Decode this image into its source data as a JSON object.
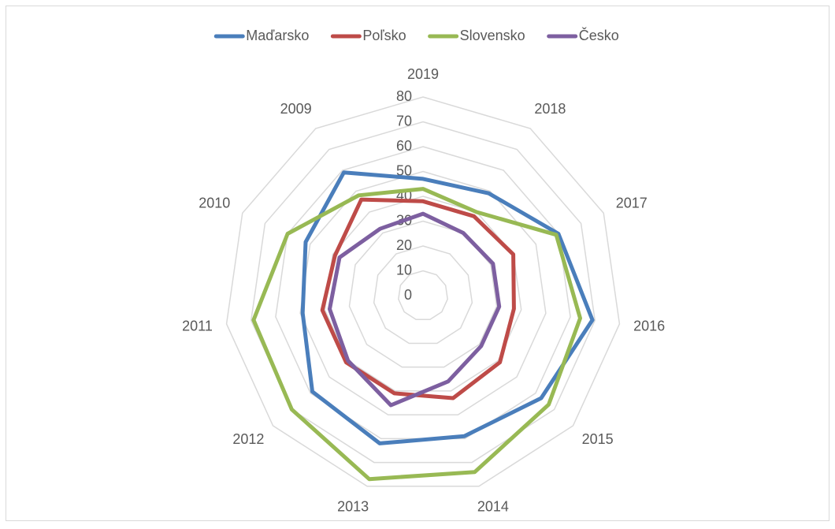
{
  "chart_data": {
    "type": "radar",
    "categories": [
      "2019",
      "2018",
      "2017",
      "2016",
      "2015",
      "2014",
      "2013",
      "2012",
      "2011",
      "2010",
      "2009"
    ],
    "series": [
      {
        "name": "Maďarsko",
        "color": "#4a7ebb",
        "values": [
          47,
          49,
          60,
          69,
          63,
          59,
          62,
          59,
          49,
          52,
          59
        ]
      },
      {
        "name": "Poľsko",
        "color": "#be4b48",
        "values": [
          38,
          38,
          40,
          37,
          41,
          43,
          41,
          41,
          41,
          39,
          46
        ]
      },
      {
        "name": "Slovensko",
        "color": "#98b954",
        "values": [
          43,
          40,
          59,
          64,
          67,
          74,
          77,
          70,
          69,
          60,
          48
        ]
      },
      {
        "name": "Česko",
        "color": "#7d5fa0",
        "values": [
          33,
          30,
          31,
          31,
          31,
          36,
          46,
          40,
          38,
          37,
          32
        ]
      }
    ],
    "ylim": [
      0,
      80
    ],
    "yticks": [
      0,
      10,
      20,
      30,
      40,
      50,
      60,
      70,
      80
    ],
    "grid": true,
    "legend": "top"
  }
}
